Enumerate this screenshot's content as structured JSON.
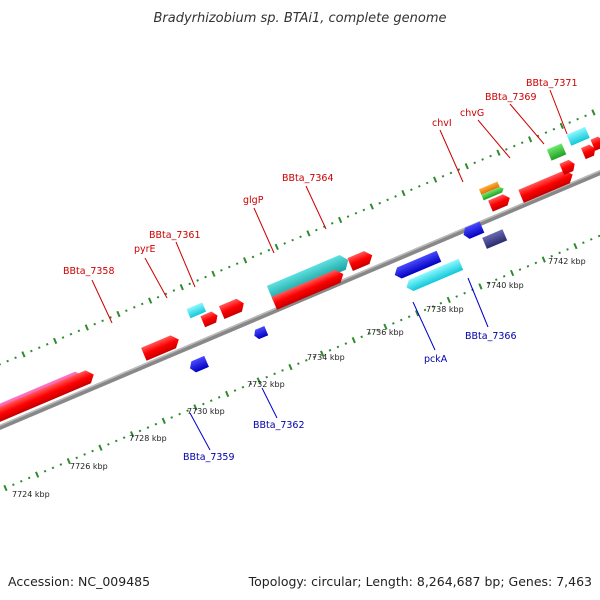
{
  "title": "Bradyrhizobium sp. BTAi1, complete genome",
  "footer": {
    "accession": "Accession: NC_009485",
    "summary": "Topology: circular; Length: 8,264,687 bp; Genes: 7,463"
  },
  "colors": {
    "background": "#ffffff",
    "backbone": "#888888",
    "tick": "#2e8b2e",
    "label_forward": "#cc0000",
    "label_reverse": "#0000aa",
    "leader_forward": "#cc0000",
    "leader_reverse": "#0000cc"
  },
  "axis": {
    "unit": "kbp",
    "tick_labels": [
      "7724 kbp",
      "7726 kbp",
      "7728 kbp",
      "7730 kbp",
      "7732 kbp",
      "7734 kbp",
      "7736 kbp",
      "7738 kbp",
      "7740 kbp",
      "7742 kbp"
    ]
  },
  "labels_forward": [
    "BBta_7358",
    "pyrE",
    "BBta_7361",
    "glgP",
    "BBta_7364",
    "chvI",
    "chvG",
    "BBta_7369",
    "BBta_7371"
  ],
  "labels_reverse": [
    "BBta_7359",
    "BBta_7362",
    "pckA",
    "BBta_7366"
  ]
}
